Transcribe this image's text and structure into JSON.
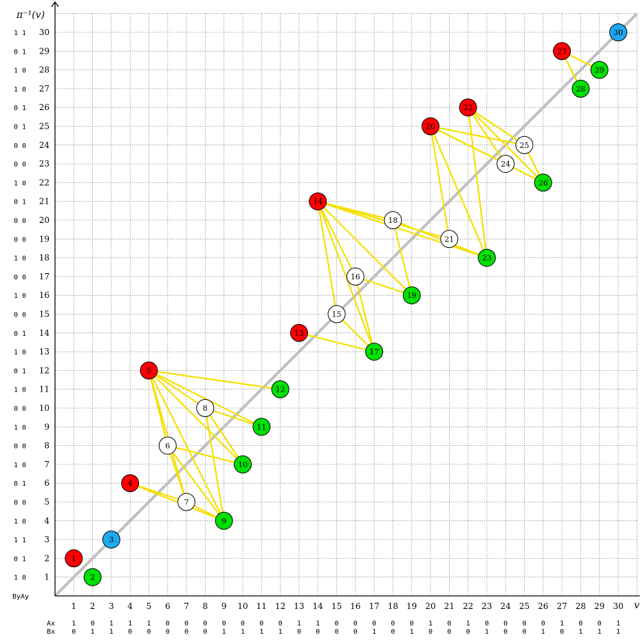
{
  "axes": {
    "x_label": "v",
    "y_label": "π⁻¹(v)",
    "corner_label": "ByAy",
    "x_bits_a_label": "Ax",
    "x_bits_b_label": "Bx"
  },
  "colors": {
    "red": "#ff0000",
    "green": "#00e000",
    "blue": "#1ea8f0",
    "white": "#ffffff",
    "edge": "#f5e000",
    "diagonal": "#c0c0c0",
    "grid": "#6e6e6e"
  },
  "chart_data": {
    "type": "scatter",
    "x_range": [
      0,
      31
    ],
    "y_range": [
      0,
      31
    ],
    "grid": true,
    "diagonal_line": true,
    "x_ticks": [
      1,
      2,
      3,
      4,
      5,
      6,
      7,
      8,
      9,
      10,
      11,
      12,
      13,
      14,
      15,
      16,
      17,
      18,
      19,
      20,
      21,
      22,
      23,
      24,
      25,
      26,
      27,
      28,
      29,
      30
    ],
    "y_ticks": [
      1,
      2,
      3,
      4,
      5,
      6,
      7,
      8,
      9,
      10,
      11,
      12,
      13,
      14,
      15,
      16,
      17,
      18,
      19,
      20,
      21,
      22,
      23,
      24,
      25,
      26,
      27,
      28,
      29,
      30
    ],
    "Ax": [
      "1",
      "0",
      "1",
      "1",
      "1",
      "0",
      "0",
      "0",
      "0",
      "0",
      "0",
      "0",
      "1",
      "1",
      "0",
      "0",
      "0",
      "0",
      "0",
      "1",
      "0",
      "1",
      "0",
      "0",
      "0",
      "0",
      "1",
      "0",
      "0",
      "1"
    ],
    "Bx": [
      "0",
      "1",
      "1",
      "0",
      "0",
      "0",
      "0",
      "0",
      "1",
      "1",
      "1",
      "1",
      "0",
      "0",
      "0",
      "0",
      "1",
      "0",
      "1",
      "0",
      "0",
      "0",
      "1",
      "0",
      "0",
      "1",
      "0",
      "1",
      "1",
      "1"
    ],
    "y_bits": {
      "1": "1 0",
      "2": "0 1",
      "3": "1 1",
      "4": "1 0",
      "5": "0 0",
      "6": "0 1",
      "7": "1 0",
      "8": "0 0",
      "9": "1 0",
      "10": "0 0",
      "11": "1 0",
      "12": "0 1",
      "13": "1 0",
      "14": "0 1",
      "15": "0 0",
      "16": "1 0",
      "17": "0 0",
      "18": "1 0",
      "19": "0 0",
      "20": "0 0",
      "21": "0 1",
      "22": "1 0",
      "23": "0 0",
      "24": "0 0",
      "25": "0 1",
      "26": "0 1",
      "27": "1 0",
      "28": "1 0",
      "29": "0 1",
      "30": "1 1"
    },
    "nodes": [
      {
        "label": "1",
        "x": 1,
        "y": 2,
        "color": "red"
      },
      {
        "label": "2",
        "x": 2,
        "y": 1,
        "color": "green"
      },
      {
        "label": "3",
        "x": 3,
        "y": 3,
        "color": "blue"
      },
      {
        "label": "4",
        "x": 4,
        "y": 6,
        "color": "red"
      },
      {
        "label": "5",
        "x": 5,
        "y": 12,
        "color": "red"
      },
      {
        "label": "6",
        "x": 6,
        "y": 8,
        "color": "white"
      },
      {
        "label": "7",
        "x": 7,
        "y": 5,
        "color": "white"
      },
      {
        "label": "8",
        "x": 8,
        "y": 10,
        "color": "white"
      },
      {
        "label": "9",
        "x": 9,
        "y": 4,
        "color": "green"
      },
      {
        "label": "10",
        "x": 10,
        "y": 7,
        "color": "green"
      },
      {
        "label": "11",
        "x": 11,
        "y": 9,
        "color": "green"
      },
      {
        "label": "12",
        "x": 12,
        "y": 11,
        "color": "green"
      },
      {
        "label": "13",
        "x": 13,
        "y": 14,
        "color": "red"
      },
      {
        "label": "14",
        "x": 14,
        "y": 21,
        "color": "red"
      },
      {
        "label": "15",
        "x": 15,
        "y": 15,
        "color": "white"
      },
      {
        "label": "16",
        "x": 16,
        "y": 17,
        "color": "white"
      },
      {
        "label": "17",
        "x": 17,
        "y": 13,
        "color": "green"
      },
      {
        "label": "18",
        "x": 18,
        "y": 20,
        "color": "white"
      },
      {
        "label": "19",
        "x": 19,
        "y": 16,
        "color": "green"
      },
      {
        "label": "20",
        "x": 20,
        "y": 25,
        "color": "red"
      },
      {
        "label": "21",
        "x": 21,
        "y": 19,
        "color": "white"
      },
      {
        "label": "22",
        "x": 22,
        "y": 26,
        "color": "red"
      },
      {
        "label": "23",
        "x": 23,
        "y": 18,
        "color": "green"
      },
      {
        "label": "24",
        "x": 24,
        "y": 23,
        "color": "white"
      },
      {
        "label": "25",
        "x": 25,
        "y": 24,
        "color": "white"
      },
      {
        "label": "26",
        "x": 26,
        "y": 22,
        "color": "green"
      },
      {
        "label": "27",
        "x": 27,
        "y": 29,
        "color": "red"
      },
      {
        "label": "28",
        "x": 28,
        "y": 27,
        "color": "green"
      },
      {
        "label": "29",
        "x": 29,
        "y": 28,
        "color": "green"
      },
      {
        "label": "30",
        "x": 30,
        "y": 30,
        "color": "blue"
      }
    ],
    "edges": [
      [
        4,
        7
      ],
      [
        4,
        9
      ],
      [
        7,
        9
      ],
      [
        6,
        7
      ],
      [
        6,
        9
      ],
      [
        6,
        10
      ],
      [
        8,
        9
      ],
      [
        8,
        10
      ],
      [
        5,
        6
      ],
      [
        5,
        7
      ],
      [
        5,
        8
      ],
      [
        5,
        9
      ],
      [
        5,
        10
      ],
      [
        5,
        11
      ],
      [
        5,
        12
      ],
      [
        8,
        11
      ],
      [
        13,
        17
      ],
      [
        15,
        17
      ],
      [
        16,
        17
      ],
      [
        14,
        15
      ],
      [
        14,
        16
      ],
      [
        14,
        17
      ],
      [
        14,
        18
      ],
      [
        14,
        19
      ],
      [
        14,
        21
      ],
      [
        14,
        23
      ],
      [
        16,
        19
      ],
      [
        18,
        19
      ],
      [
        18,
        23
      ],
      [
        20,
        21
      ],
      [
        20,
        23
      ],
      [
        20,
        24
      ],
      [
        20,
        25
      ],
      [
        20,
        26
      ],
      [
        22,
        23
      ],
      [
        22,
        24
      ],
      [
        22,
        25
      ],
      [
        22,
        26
      ],
      [
        24,
        26
      ],
      [
        25,
        26
      ],
      [
        27,
        28
      ],
      [
        27,
        29
      ]
    ]
  }
}
